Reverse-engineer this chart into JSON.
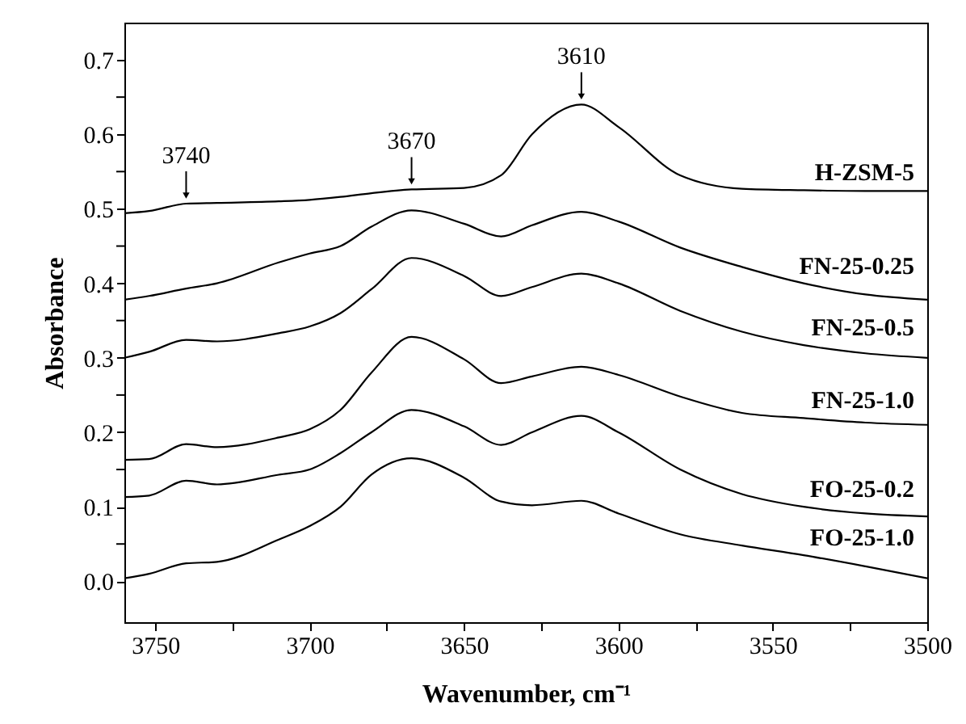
{
  "chart_data": {
    "type": "line",
    "xlabel": "Wavenumber, cm⁻¹",
    "ylabel": "Absorbance",
    "x": [
      3760,
      3752,
      3740,
      3730,
      3710,
      3700,
      3690,
      3680,
      3667,
      3650,
      3638,
      3628,
      3612,
      3600,
      3580,
      3560,
      3540,
      3520,
      3500
    ],
    "series": [
      {
        "name": "H-ZSM-5",
        "color": "#000000",
        "values": [
          0.494,
          0.497,
          0.507,
          0.508,
          0.51,
          0.512,
          0.516,
          0.521,
          0.526,
          0.528,
          0.545,
          0.6,
          0.64,
          0.61,
          0.545,
          0.527,
          0.525,
          0.524,
          0.524
        ]
      },
      {
        "name": "FN-25-0.25",
        "color": "#000000",
        "values": [
          0.378,
          0.383,
          0.393,
          0.4,
          0.428,
          0.44,
          0.45,
          0.476,
          0.498,
          0.48,
          0.463,
          0.478,
          0.496,
          0.483,
          0.448,
          0.422,
          0.4,
          0.385,
          0.378
        ]
      },
      {
        "name": "FN-25-0.5",
        "color": "#000000",
        "values": [
          0.3,
          0.308,
          0.324,
          0.322,
          0.333,
          0.342,
          0.36,
          0.392,
          0.434,
          0.41,
          0.383,
          0.395,
          0.413,
          0.4,
          0.363,
          0.335,
          0.317,
          0.306,
          0.3
        ]
      },
      {
        "name": "FN-25-1.0",
        "color": "#000000",
        "values": [
          0.163,
          0.164,
          0.184,
          0.18,
          0.193,
          0.204,
          0.23,
          0.28,
          0.328,
          0.298,
          0.266,
          0.275,
          0.288,
          0.277,
          0.248,
          0.226,
          0.219,
          0.213,
          0.21
        ]
      },
      {
        "name": "FO-25-0.2",
        "color": "#000000",
        "values": [
          0.113,
          0.115,
          0.135,
          0.13,
          0.143,
          0.15,
          0.172,
          0.2,
          0.23,
          0.208,
          0.183,
          0.2,
          0.222,
          0.2,
          0.15,
          0.117,
          0.1,
          0.091,
          0.087
        ]
      },
      {
        "name": "FO-25-1.0",
        "color": "#000000",
        "values": [
          0.004,
          0.01,
          0.024,
          0.026,
          0.056,
          0.074,
          0.1,
          0.143,
          0.165,
          0.139,
          0.107,
          0.102,
          0.108,
          0.091,
          0.063,
          0.048,
          0.035,
          0.02,
          0.004
        ]
      }
    ],
    "annotations": [
      {
        "text": "3740",
        "x": 3740,
        "y": 0.507
      },
      {
        "text": "3670",
        "x": 3667,
        "y": 0.526
      },
      {
        "text": "3610",
        "x": 3612,
        "y": 0.64
      }
    ],
    "xlim": [
      3760,
      3500
    ],
    "xticks": [
      3750,
      {
        "value": 3725,
        "label": null
      },
      3700,
      {
        "value": 3675,
        "label": null
      },
      3650,
      {
        "value": 3625,
        "label": null
      },
      3600,
      {
        "value": 3575,
        "label": null
      },
      3550,
      {
        "value": 3525,
        "label": null
      },
      3500
    ],
    "ylim": [
      -0.055,
      0.75
    ],
    "yticks": [
      {
        "value": 0,
        "label": "0.0"
      },
      {
        "value": 0.05,
        "label": null
      },
      0.1,
      {
        "value": 0.15,
        "label": null
      },
      0.2,
      {
        "value": 0.25,
        "label": null
      },
      0.3,
      {
        "value": 0.35,
        "label": null
      },
      0.4,
      {
        "value": 0.45,
        "label": null
      },
      0.5,
      {
        "value": 0.55,
        "label": null
      },
      0.6,
      {
        "value": 0.65,
        "label": null
      },
      0.7
    ],
    "grid": false,
    "marker": "none",
    "line_style": "solid"
  }
}
